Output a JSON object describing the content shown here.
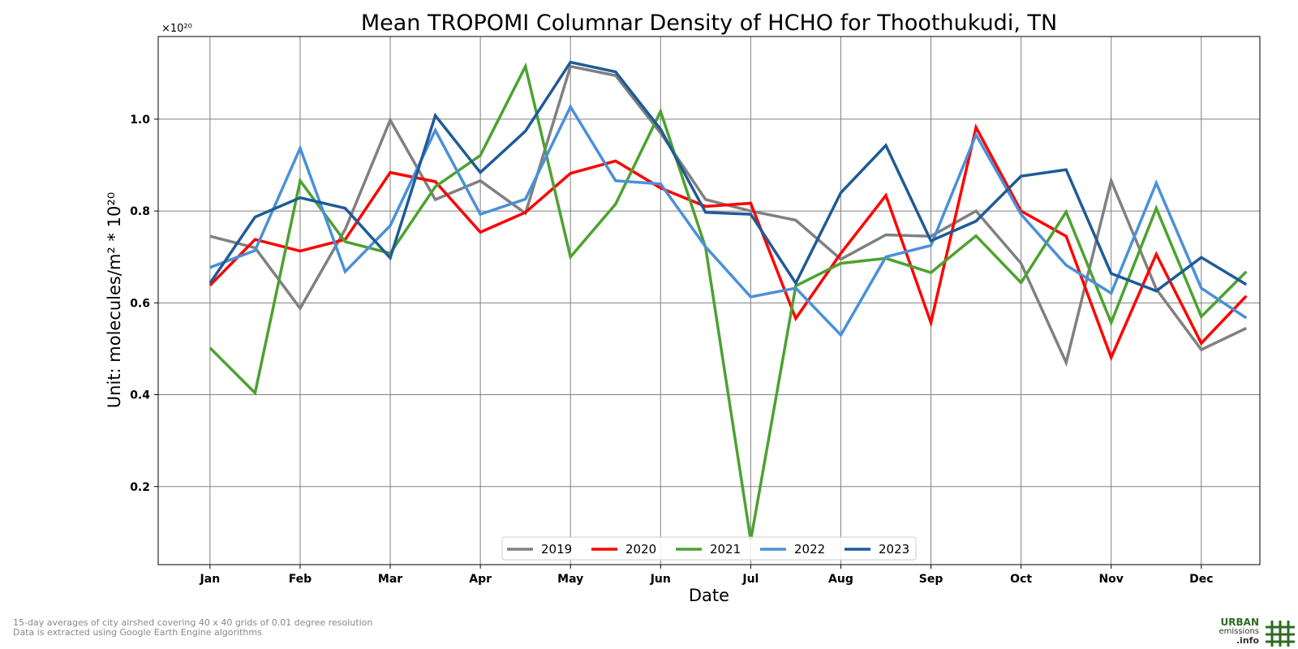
{
  "chart_data": {
    "type": "line",
    "title": "Mean TROPOMI Columnar Density of HCHO for Thoothukudi, TN",
    "xlabel": "Date",
    "ylabel": "Unit: molecules/m² * 10²⁰",
    "y_multiplier": "×10²⁰",
    "ylim": [
      0.03,
      1.18
    ],
    "yticks": [
      0.2,
      0.4,
      0.6,
      0.8,
      1.0
    ],
    "ytick_labels": [
      "0.2",
      "0.4",
      "0.6",
      "0.8",
      "1.0"
    ],
    "month_ticks": [
      "Jan",
      "Feb",
      "Mar",
      "Apr",
      "May",
      "Jun",
      "Jul",
      "Aug",
      "Sep",
      "Oct",
      "Nov",
      "Dec"
    ],
    "x": [
      1,
      2,
      3,
      4,
      5,
      6,
      7,
      8,
      9,
      10,
      11,
      12,
      13,
      14,
      15,
      16,
      17,
      18,
      19,
      20,
      21,
      22,
      23,
      24
    ],
    "xlim": [
      -0.15,
      24.3
    ],
    "grid": true,
    "legend_position": "bottom-center",
    "series": [
      {
        "name": "2019",
        "color": "#808080",
        "values": [
          0.745,
          0.72,
          0.588,
          0.76,
          0.998,
          0.825,
          0.866,
          0.795,
          1.115,
          1.095,
          0.97,
          0.825,
          0.8,
          0.78,
          0.695,
          0.748,
          0.745,
          0.8,
          0.686,
          0.47,
          0.866,
          0.63,
          0.498,
          0.545
        ]
      },
      {
        "name": "2020",
        "color": "#ff0000",
        "values": [
          0.638,
          0.738,
          0.713,
          0.738,
          0.884,
          0.864,
          0.754,
          0.797,
          0.882,
          0.909,
          0.85,
          0.81,
          0.817,
          0.566,
          0.708,
          0.834,
          0.557,
          0.982,
          0.8,
          0.745,
          0.481,
          0.706,
          0.512,
          0.615
        ]
      },
      {
        "name": "2021",
        "color": "#4ca22f",
        "values": [
          0.502,
          0.404,
          0.866,
          0.733,
          0.708,
          0.853,
          0.921,
          1.115,
          0.7,
          0.815,
          1.017,
          0.72,
          0.083,
          0.637,
          0.686,
          0.697,
          0.666,
          0.746,
          0.644,
          0.798,
          0.557,
          0.806,
          0.57,
          0.668
        ]
      },
      {
        "name": "2022",
        "color": "#4a90d9",
        "values": [
          0.677,
          0.714,
          0.937,
          0.668,
          0.768,
          0.976,
          0.793,
          0.826,
          1.027,
          0.866,
          0.859,
          0.722,
          0.613,
          0.632,
          0.53,
          0.7,
          0.725,
          0.966,
          0.793,
          0.682,
          0.621,
          0.861,
          0.632,
          0.567
        ]
      },
      {
        "name": "2023",
        "color": "#1f5b96",
        "values": [
          0.643,
          0.787,
          0.829,
          0.806,
          0.698,
          1.008,
          0.884,
          0.974,
          1.124,
          1.103,
          0.978,
          0.797,
          0.793,
          0.643,
          0.84,
          0.943,
          0.735,
          0.778,
          0.876,
          0.89,
          0.664,
          0.626,
          0.699,
          0.64
        ]
      }
    ]
  },
  "footnote": {
    "line1": "15-day averages of city airshed covering 40 x 40 grids of 0.01 degree resolution",
    "line2": "Data is extracted using Google Earth Engine algorithms"
  },
  "logo": {
    "line1": "URBAN",
    "line2": "emissions",
    "line3": ".info",
    "color": "#2e6b1f"
  }
}
